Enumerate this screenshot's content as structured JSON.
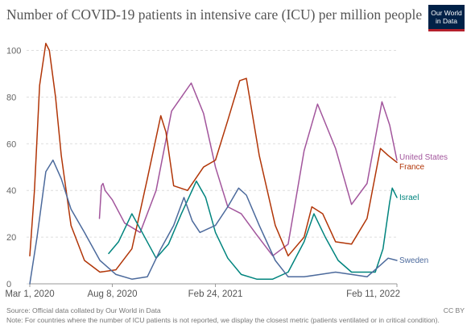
{
  "header": {
    "title": "Number of COVID-19 patients in intensive care (ICU) per million people",
    "logo_line1": "Our World",
    "logo_line2": "in Data"
  },
  "footer": {
    "source": "Source: Official data collated by Our World in Data",
    "note": "Note: For countries where the number of ICU patients is not reported, we display the closest metric (patients ventilated or in critical condition).",
    "license": "CC BY"
  },
  "colors": {
    "United States": "#a2559c",
    "France": "#b13507",
    "Israel": "#00847e",
    "Sweden": "#4c6a9c"
  },
  "chart_data": {
    "type": "line",
    "title": "Number of COVID-19 patients in intensive care (ICU) per million people",
    "xlabel": "",
    "ylabel": "",
    "x_range": [
      "2020-03-01",
      "2022-02-11"
    ],
    "ylim": [
      0,
      105
    ],
    "y_ticks": [
      0,
      20,
      40,
      60,
      80,
      100
    ],
    "x_tick_labels": [
      "Mar 1, 2020",
      "Aug 8, 2020",
      "Feb 24, 2021",
      "Feb 11, 2022"
    ],
    "x_tick_dates": [
      "2020-03-01",
      "2020-08-08",
      "2021-02-24",
      "2022-02-11"
    ],
    "grid": "horizontal dashed",
    "legend": "labels at line ends (right)",
    "series": [
      {
        "name": "United States",
        "dates": [
          "2020-07-14",
          "2020-07-18",
          "2020-07-21",
          "2020-07-25",
          "2020-08-08",
          "2020-09-01",
          "2020-10-01",
          "2020-11-01",
          "2020-12-01",
          "2021-01-08",
          "2021-02-01",
          "2021-02-24",
          "2021-03-20",
          "2021-04-15",
          "2021-05-15",
          "2021-06-15",
          "2021-07-15",
          "2021-08-15",
          "2021-09-10",
          "2021-10-15",
          "2021-11-15",
          "2021-12-15",
          "2022-01-13",
          "2022-01-28",
          "2022-02-11"
        ],
        "values": [
          28,
          42,
          43,
          40,
          36,
          26,
          22,
          40,
          74,
          86,
          73,
          50,
          33,
          30,
          21,
          12,
          17,
          57,
          77,
          58,
          34,
          43,
          78,
          68,
          53
        ]
      },
      {
        "name": "France",
        "dates": [
          "2020-03-01",
          "2020-03-10",
          "2020-03-20",
          "2020-04-01",
          "2020-04-08",
          "2020-04-20",
          "2020-05-01",
          "2020-05-20",
          "2020-06-15",
          "2020-07-15",
          "2020-08-15",
          "2020-09-15",
          "2020-10-15",
          "2020-11-10",
          "2020-11-20",
          "2020-12-05",
          "2021-01-01",
          "2021-02-01",
          "2021-02-24",
          "2021-03-20",
          "2021-04-12",
          "2021-04-25",
          "2021-05-20",
          "2021-06-20",
          "2021-07-15",
          "2021-08-15",
          "2021-08-30",
          "2021-09-20",
          "2021-10-15",
          "2021-11-15",
          "2021-12-15",
          "2022-01-10",
          "2022-01-25",
          "2022-02-11"
        ],
        "values": [
          12,
          40,
          85,
          103,
          100,
          80,
          55,
          25,
          10,
          5,
          6,
          15,
          45,
          72,
          65,
          42,
          40,
          50,
          53,
          70,
          87,
          88,
          55,
          25,
          12,
          20,
          33,
          30,
          18,
          17,
          28,
          58,
          55,
          52
        ]
      },
      {
        "name": "Israel",
        "dates": [
          "2020-08-01",
          "2020-08-20",
          "2020-09-15",
          "2020-10-05",
          "2020-11-01",
          "2020-11-25",
          "2020-12-20",
          "2021-01-18",
          "2021-02-05",
          "2021-02-24",
          "2021-03-20",
          "2021-04-15",
          "2021-05-15",
          "2021-06-15",
          "2021-07-15",
          "2021-08-15",
          "2021-09-03",
          "2021-09-25",
          "2021-10-20",
          "2021-11-15",
          "2021-12-15",
          "2021-12-31",
          "2022-01-15",
          "2022-01-28",
          "2022-02-02",
          "2022-02-11"
        ],
        "values": [
          13,
          18,
          30,
          22,
          11,
          17,
          30,
          44,
          37,
          22,
          11,
          4,
          2,
          2,
          5,
          18,
          30,
          20,
          10,
          5,
          5,
          5,
          15,
          35,
          41,
          37
        ]
      },
      {
        "name": "Sweden",
        "dates": [
          "2020-03-01",
          "2020-03-15",
          "2020-04-01",
          "2020-04-15",
          "2020-05-01",
          "2020-05-20",
          "2020-06-15",
          "2020-07-15",
          "2020-08-15",
          "2020-09-15",
          "2020-10-15",
          "2020-11-10",
          "2020-12-05",
          "2020-12-25",
          "2021-01-10",
          "2021-01-25",
          "2021-02-24",
          "2021-03-20",
          "2021-04-10",
          "2021-04-25",
          "2021-05-20",
          "2021-06-20",
          "2021-07-15",
          "2021-08-15",
          "2021-09-15",
          "2021-10-15",
          "2021-11-15",
          "2021-12-15",
          "2022-01-10",
          "2022-01-25",
          "2022-02-11"
        ],
        "values": [
          0,
          20,
          48,
          53,
          45,
          32,
          22,
          10,
          4,
          2,
          3,
          15,
          25,
          37,
          27,
          22,
          25,
          33,
          41,
          38,
          25,
          10,
          3,
          3,
          4,
          5,
          4,
          3,
          8,
          11,
          10
        ]
      }
    ],
    "annotations": [
      "United States",
      "France",
      "Israel",
      "Sweden"
    ]
  }
}
